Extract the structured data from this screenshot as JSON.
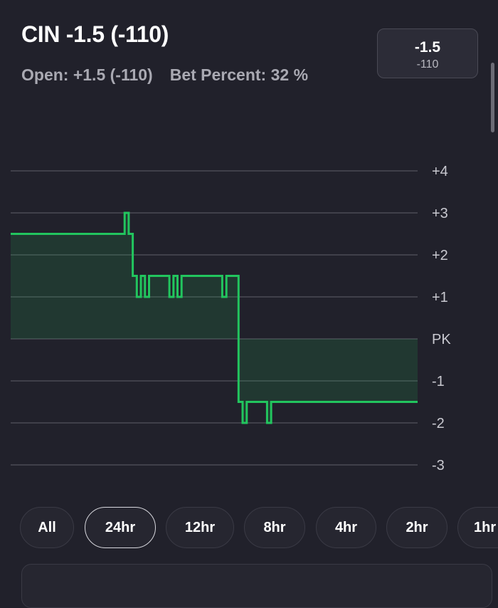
{
  "header": {
    "title": "CIN -1.5 (-110)",
    "open_text": "Open: +1.5 (-110)",
    "bet_percent_text": "Bet Percent: 32 %"
  },
  "current_line": {
    "line": "-1.5",
    "odds": "-110"
  },
  "colors": {
    "accent": "#22c55e",
    "background": "#21212b",
    "grid": "#4a4a55"
  },
  "chart_data": {
    "type": "line",
    "title": "",
    "xlabel": "",
    "ylabel": "",
    "time_range": "24hr",
    "ylim": [
      -3,
      4
    ],
    "y_ticks": [
      4,
      3,
      2,
      1,
      0,
      -1,
      -2,
      -3
    ],
    "y_tick_labels": [
      "+4",
      "+3",
      "+2",
      "+1",
      "PK",
      "-1",
      "-2",
      "-3"
    ],
    "grid": true,
    "baseline": 0,
    "series": [
      {
        "step": true,
        "x": [
          0,
          28,
          29,
          30,
          31,
          32,
          33,
          34,
          39,
          40,
          41,
          42,
          52,
          53,
          56,
          57,
          58,
          63,
          64,
          100
        ],
        "y": [
          2.5,
          3,
          2.5,
          1.5,
          1,
          1.5,
          1,
          1.5,
          1,
          1.5,
          1,
          1.5,
          1,
          1.5,
          -1.5,
          -2,
          -1.5,
          -2,
          -1.5,
          -1.5
        ]
      }
    ]
  },
  "range_tabs": [
    {
      "label": "All",
      "active": false
    },
    {
      "label": "24hr",
      "active": true
    },
    {
      "label": "12hr",
      "active": false
    },
    {
      "label": "8hr",
      "active": false
    },
    {
      "label": "4hr",
      "active": false
    },
    {
      "label": "2hr",
      "active": false
    },
    {
      "label": "1hr",
      "active": false
    }
  ]
}
